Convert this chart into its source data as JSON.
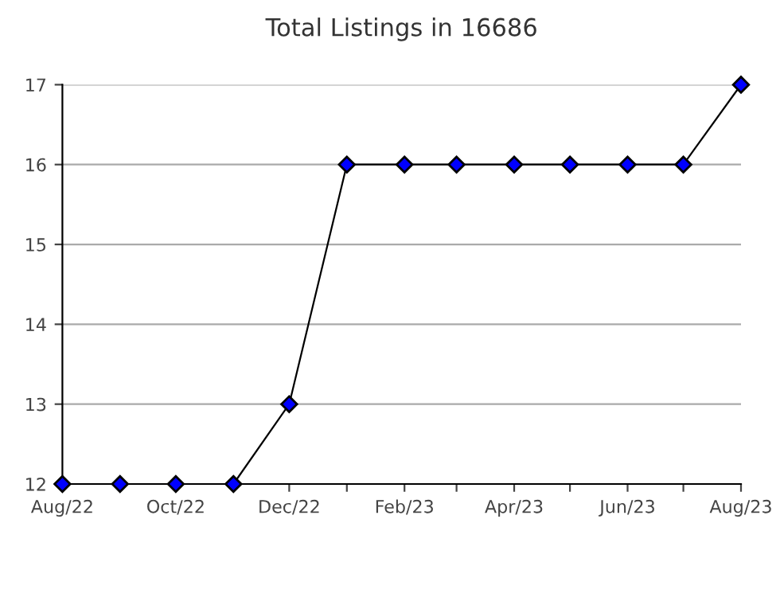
{
  "chart_data": {
    "type": "line",
    "title": "Total Listings in 16686",
    "x": [
      "2022-08",
      "2022-09",
      "2022-10",
      "2022-11",
      "2022-12",
      "2023-01",
      "2023-02",
      "2023-03",
      "2023-04",
      "2023-05",
      "2023-06",
      "2023-07",
      "2023-08"
    ],
    "series": [
      {
        "color": "#0000ff",
        "values": [
          12,
          12,
          12,
          12,
          13,
          16,
          16,
          16,
          16,
          16,
          16,
          16,
          17
        ]
      }
    ],
    "marker": "diamond",
    "xlim": [
      "2022-08",
      "2023-08"
    ],
    "xticks": [
      {
        "value": "2022-08",
        "label": "Aug/22"
      },
      {
        "value": "2022-09",
        "label": null
      },
      {
        "value": "2022-10",
        "label": "Oct/22"
      },
      {
        "value": "2022-11",
        "label": null
      },
      {
        "value": "2022-12",
        "label": "Dec/22"
      },
      {
        "value": "2023-01",
        "label": null
      },
      {
        "value": "2023-02",
        "label": "Feb/23"
      },
      {
        "value": "2023-03",
        "label": null
      },
      {
        "value": "2023-04",
        "label": "Apr/23"
      },
      {
        "value": "2023-05",
        "label": null
      },
      {
        "value": "2023-06",
        "label": "Jun/23"
      },
      {
        "value": "2023-07",
        "label": null
      },
      {
        "value": "2023-08",
        "label": "Aug/23"
      }
    ],
    "ylim": [
      12,
      17
    ],
    "yticks": [
      12,
      13,
      14,
      15,
      16,
      17
    ],
    "grid": "y"
  }
}
